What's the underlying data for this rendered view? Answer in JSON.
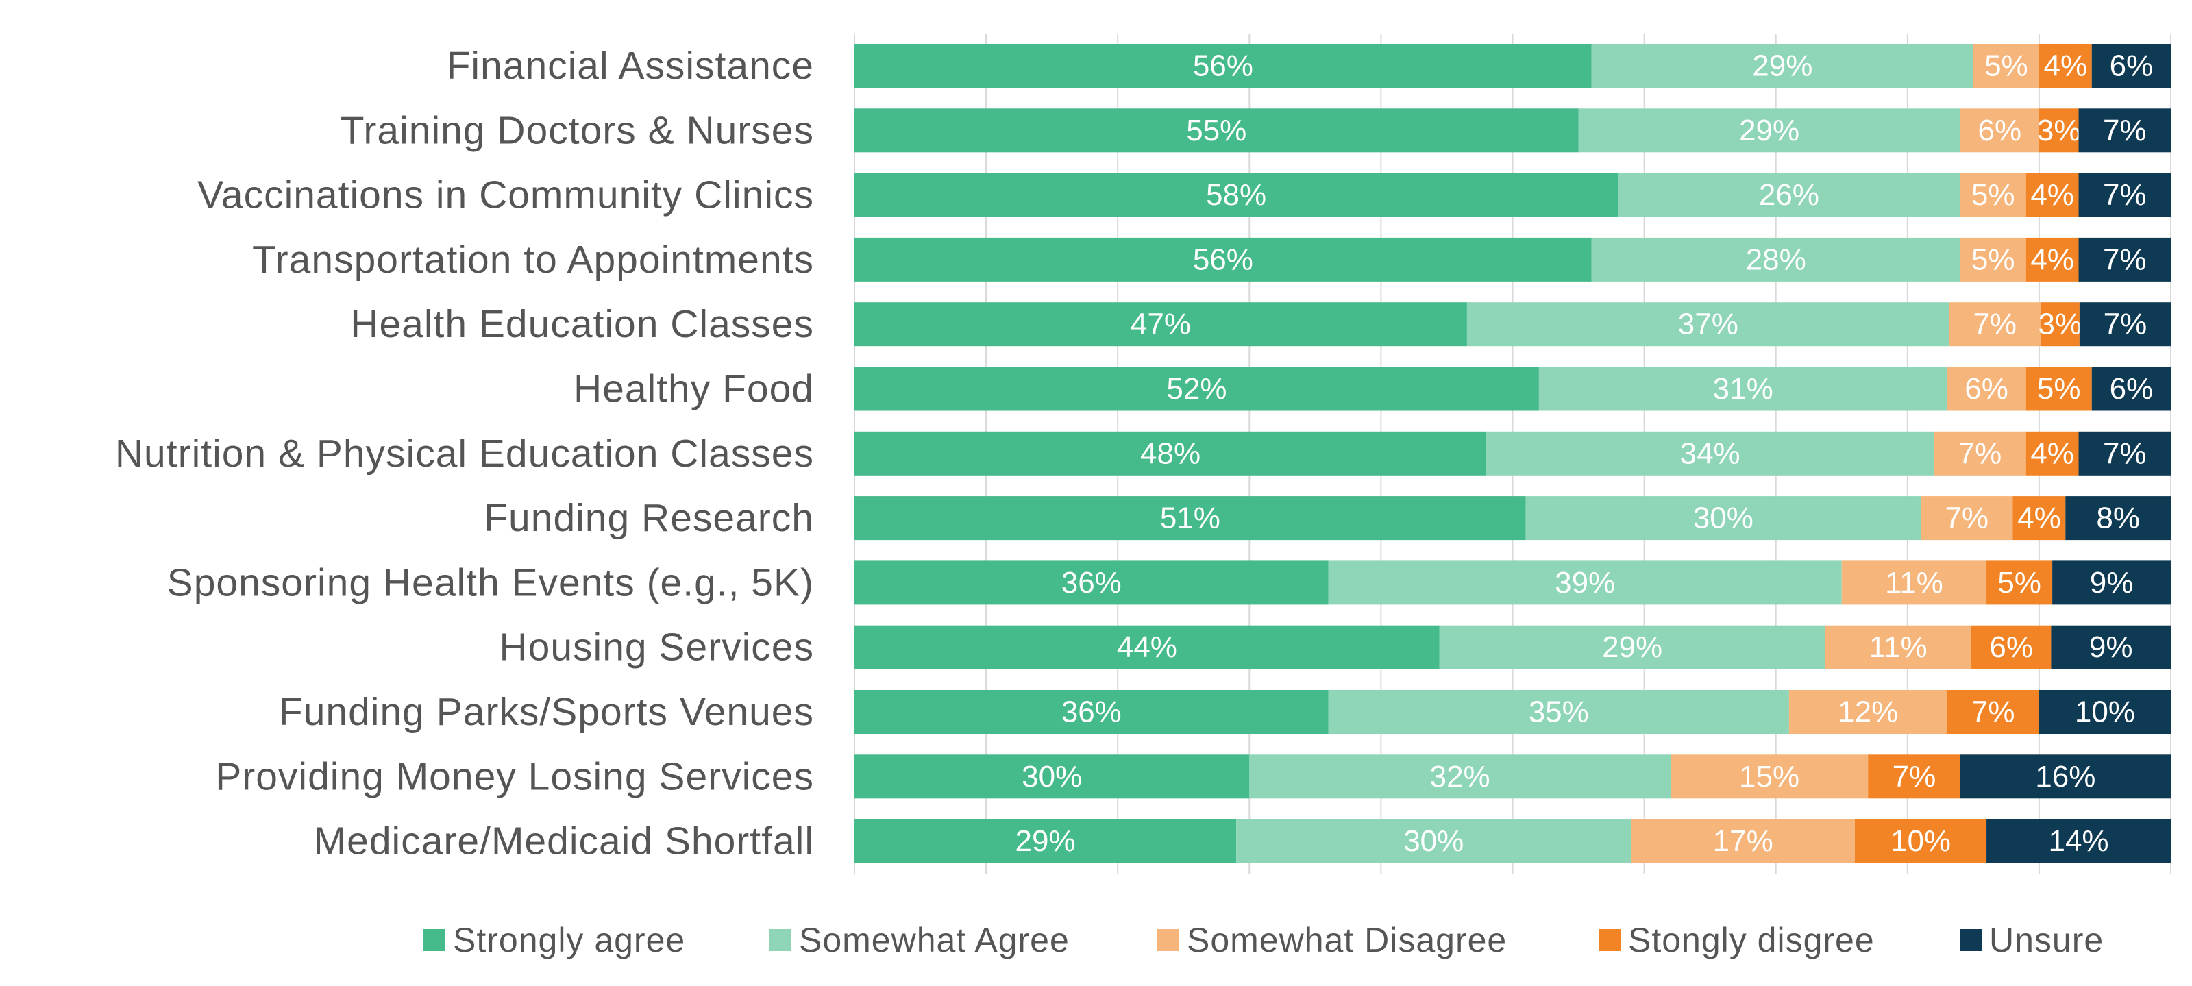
{
  "chart_data": {
    "type": "bar",
    "orientation": "horizontal",
    "stacked": true,
    "xlim": [
      0,
      100
    ],
    "grid": true,
    "legend_position": "bottom",
    "categories": [
      "Financial Assistance",
      "Training Doctors & Nurses",
      "Vaccinations in Community Clinics",
      "Transportation to Appointments",
      "Health Education Classes",
      "Healthy Food",
      "Nutrition & Physical Education Classes",
      "Funding Research",
      "Sponsoring Health Events (e.g., 5K)",
      "Housing Services",
      "Funding Parks/Sports Venues",
      "Providing Money Losing Services",
      "Medicare/Medicaid Shortfall"
    ],
    "series": [
      {
        "name": "Strongly agree",
        "color": "#45ba8a",
        "values": [
          56,
          55,
          58,
          56,
          47,
          52,
          48,
          51,
          36,
          44,
          36,
          30,
          29
        ]
      },
      {
        "name": "Somewhat Agree",
        "color": "#8fd6b8",
        "values": [
          29,
          29,
          26,
          28,
          37,
          31,
          34,
          30,
          39,
          29,
          35,
          32,
          30
        ]
      },
      {
        "name": "Somewhat Disagree",
        "color": "#f5b57b",
        "values": [
          5,
          6,
          5,
          5,
          7,
          6,
          7,
          7,
          11,
          11,
          12,
          15,
          17
        ]
      },
      {
        "name": "Stongly disgree",
        "color": "#f28425",
        "values": [
          4,
          3,
          4,
          4,
          3,
          5,
          4,
          4,
          5,
          6,
          7,
          7,
          10
        ]
      },
      {
        "name": "Unsure",
        "color": "#0e3a54",
        "values": [
          6,
          7,
          7,
          7,
          7,
          6,
          7,
          8,
          9,
          9,
          10,
          16,
          14
        ]
      }
    ],
    "value_suffix": "%"
  }
}
